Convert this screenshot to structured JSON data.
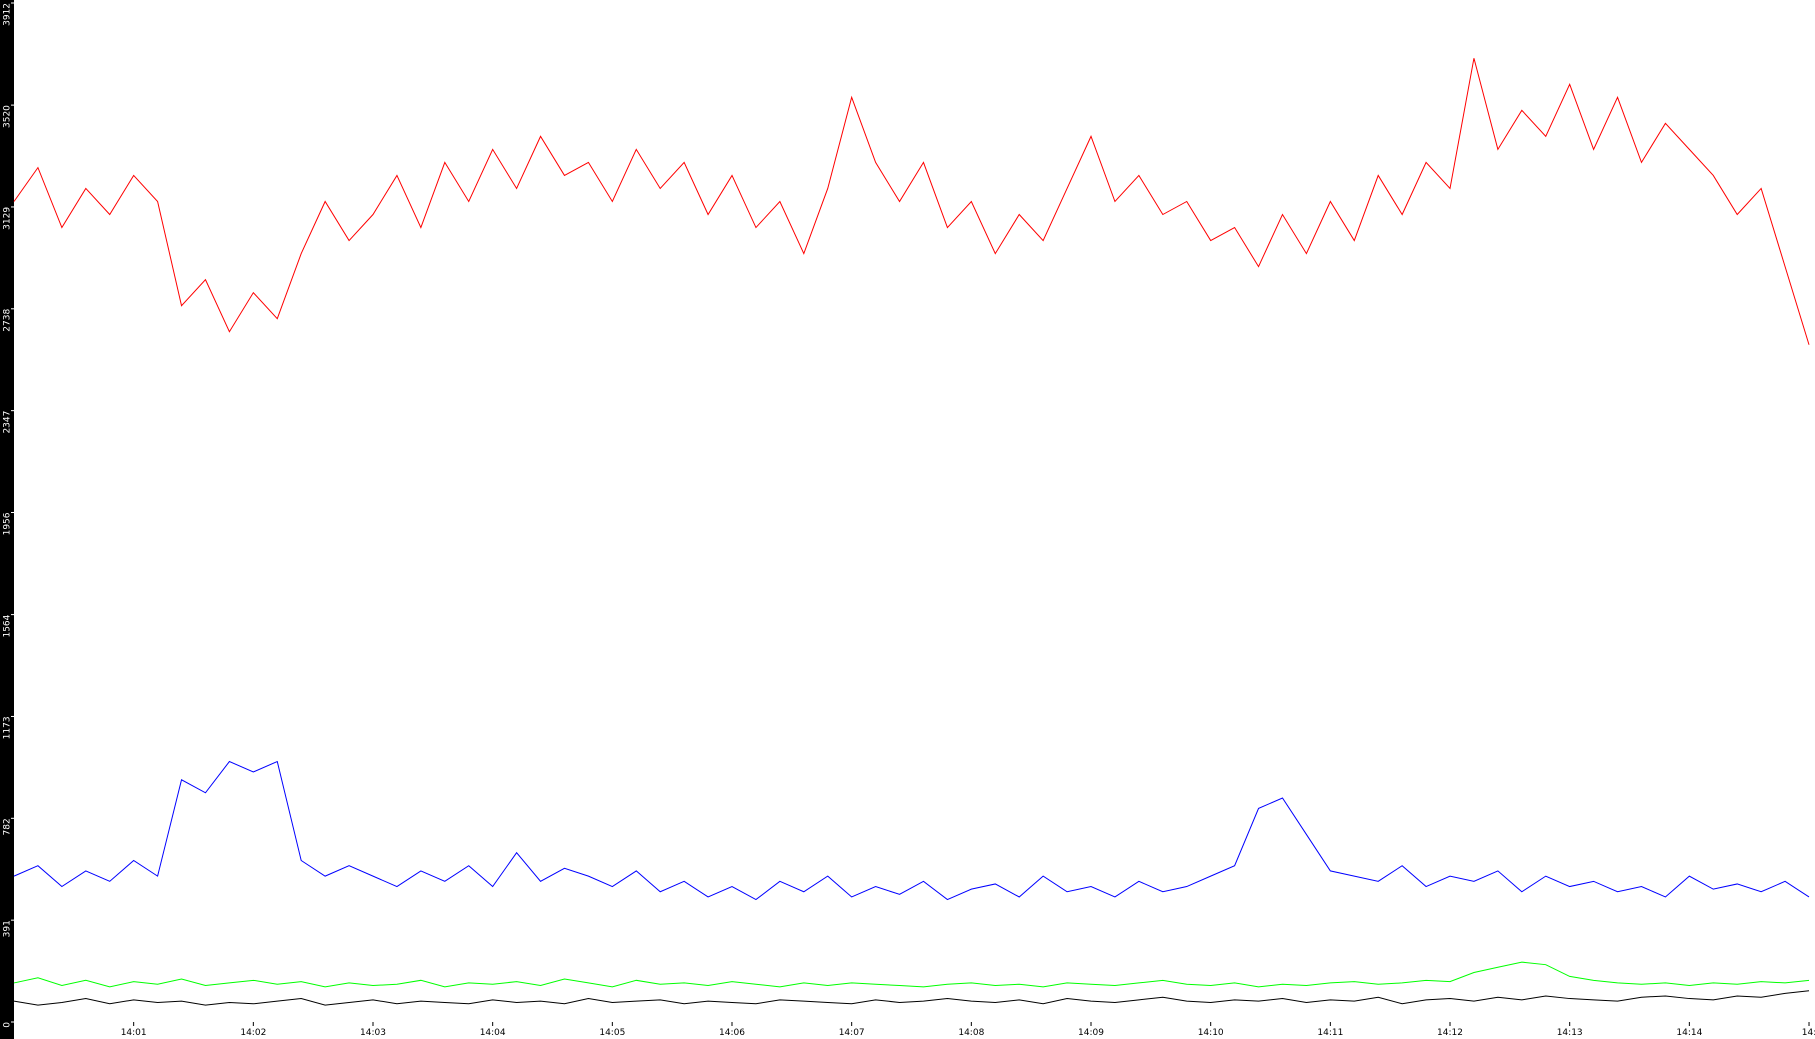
{
  "chart_data": {
    "type": "line",
    "xlim": [
      0,
      15.05
    ],
    "ylim": [
      0,
      3912
    ],
    "xticks": [
      {
        "value": 1,
        "label": "14:01"
      },
      {
        "value": 2,
        "label": "14:02"
      },
      {
        "value": 3,
        "label": "14:03"
      },
      {
        "value": 4,
        "label": "14:04"
      },
      {
        "value": 5,
        "label": "14:05"
      },
      {
        "value": 6,
        "label": "14:06"
      },
      {
        "value": 7,
        "label": "14:07"
      },
      {
        "value": 8,
        "label": "14:08"
      },
      {
        "value": 9,
        "label": "14:09"
      },
      {
        "value": 10,
        "label": "14:10"
      },
      {
        "value": 11,
        "label": "14:11"
      },
      {
        "value": 12,
        "label": "14:12"
      },
      {
        "value": 13,
        "label": "14:13"
      },
      {
        "value": 14,
        "label": "14:14"
      },
      {
        "value": 15,
        "label": "14:"
      }
    ],
    "yticks": [
      0,
      391,
      782,
      1173,
      1564,
      1956,
      2347,
      2738,
      3129,
      3520,
      3912
    ],
    "x": [
      0,
      0.2,
      0.4,
      0.6,
      0.8,
      1,
      1.2,
      1.4,
      1.6,
      1.8,
      2,
      2.2,
      2.4,
      2.6,
      2.8,
      3,
      3.2,
      3.4,
      3.6,
      3.8,
      4,
      4.2,
      4.4,
      4.6,
      4.8,
      5,
      5.2,
      5.4,
      5.6,
      5.8,
      6,
      6.2,
      6.4,
      6.6,
      6.8,
      7,
      7.2,
      7.4,
      7.6,
      7.8,
      8,
      8.2,
      8.4,
      8.6,
      8.8,
      9,
      9.2,
      9.4,
      9.6,
      9.8,
      10,
      10.2,
      10.4,
      10.6,
      10.8,
      11,
      11.2,
      11.4,
      11.6,
      11.8,
      12,
      12.2,
      12.4,
      12.6,
      12.8,
      13,
      13.2,
      13.4,
      13.6,
      13.8,
      14,
      14.2,
      14.4,
      14.6,
      14.8,
      15
    ],
    "series": [
      {
        "color": "#ff0000",
        "values": [
          3150,
          3280,
          3050,
          3200,
          3100,
          3250,
          3150,
          2750,
          2850,
          2650,
          2800,
          2700,
          2950,
          3150,
          3000,
          3100,
          3250,
          3050,
          3300,
          3150,
          3350,
          3200,
          3400,
          3250,
          3300,
          3150,
          3350,
          3200,
          3300,
          3100,
          3250,
          3050,
          3150,
          2950,
          3200,
          3550,
          3300,
          3150,
          3300,
          3050,
          3150,
          2950,
          3100,
          3000,
          3200,
          3400,
          3150,
          3250,
          3100,
          3150,
          3000,
          3050,
          2900,
          3100,
          2950,
          3150,
          3000,
          3250,
          3100,
          3300,
          3200,
          3700,
          3350,
          3500,
          3400,
          3600,
          3350,
          3550,
          3300,
          3450,
          3350,
          3250,
          3100,
          3200,
          2900,
          2600
        ]
      },
      {
        "color": "#0000ff",
        "values": [
          560,
          600,
          520,
          580,
          540,
          620,
          560,
          930,
          880,
          1000,
          960,
          1000,
          620,
          560,
          600,
          560,
          520,
          580,
          540,
          600,
          520,
          650,
          540,
          590,
          560,
          520,
          580,
          500,
          540,
          480,
          520,
          470,
          540,
          500,
          560,
          480,
          520,
          490,
          540,
          470,
          510,
          530,
          480,
          560,
          500,
          520,
          480,
          540,
          500,
          520,
          560,
          600,
          820,
          860,
          720,
          580,
          560,
          540,
          600,
          520,
          560,
          540,
          580,
          500,
          560,
          520,
          540,
          500,
          520,
          480,
          560,
          510,
          530,
          500,
          540,
          480
        ]
      },
      {
        "color": "#00ff00",
        "values": [
          150,
          170,
          140,
          160,
          135,
          155,
          145,
          165,
          140,
          150,
          160,
          145,
          155,
          135,
          150,
          140,
          145,
          160,
          135,
          150,
          145,
          155,
          140,
          165,
          150,
          135,
          160,
          145,
          150,
          140,
          155,
          145,
          135,
          150,
          140,
          150,
          145,
          140,
          135,
          145,
          150,
          140,
          145,
          135,
          150,
          145,
          140,
          150,
          160,
          145,
          140,
          150,
          135,
          145,
          140,
          150,
          155,
          145,
          150,
          160,
          155,
          190,
          210,
          230,
          220,
          175,
          160,
          150,
          145,
          150,
          140,
          150,
          145,
          155,
          150,
          160
        ]
      },
      {
        "color": "#000000",
        "values": [
          80,
          65,
          75,
          90,
          70,
          85,
          75,
          80,
          65,
          75,
          70,
          80,
          90,
          65,
          75,
          85,
          70,
          80,
          75,
          70,
          85,
          75,
          80,
          70,
          90,
          75,
          80,
          85,
          70,
          80,
          75,
          70,
          85,
          80,
          75,
          70,
          85,
          75,
          80,
          90,
          80,
          75,
          85,
          70,
          90,
          80,
          75,
          85,
          95,
          80,
          75,
          85,
          80,
          90,
          75,
          85,
          80,
          95,
          70,
          85,
          90,
          80,
          95,
          85,
          100,
          90,
          85,
          80,
          95,
          100,
          90,
          85,
          100,
          95,
          110,
          120
        ]
      }
    ]
  }
}
